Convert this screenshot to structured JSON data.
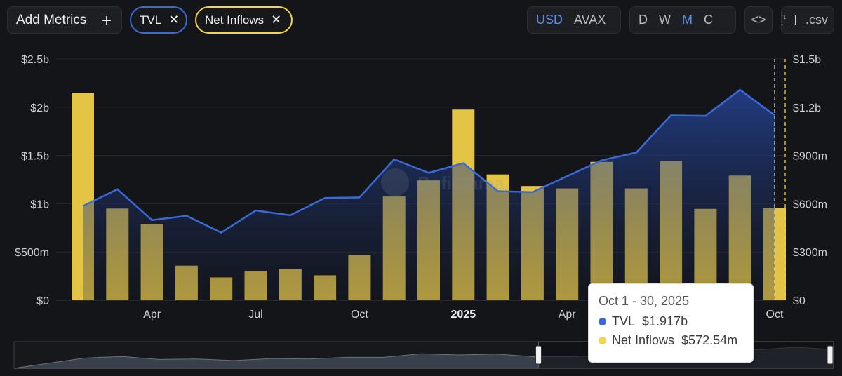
{
  "toolbar": {
    "add_metrics_label": "Add Metrics",
    "add_icon": "plus-icon",
    "metric_pills": [
      {
        "label": "TVL",
        "color": "#3a6ad8"
      },
      {
        "label": "Net Inflows",
        "color": "#f5d44a"
      }
    ],
    "close_icon": "x-icon",
    "currency_options": [
      "USD",
      "AVAX"
    ],
    "currency_selected": "USD",
    "period_options": [
      "D",
      "W",
      "M",
      "C"
    ],
    "period_selected": "M",
    "embed_label": "<>",
    "csv_label": ".csv",
    "accent_color": "#5a8ee8"
  },
  "watermark": "DefiLlama",
  "chart_data": {
    "type": "bar+area",
    "x": [
      "2024-02",
      "2024-03",
      "2024-04",
      "2024-05",
      "2024-06",
      "2024-07",
      "2024-08",
      "2024-09",
      "2024-10",
      "2024-11",
      "2024-12",
      "2025-01",
      "2025-02",
      "2025-03",
      "2025-04",
      "2025-05",
      "2025-06",
      "2025-07",
      "2025-08",
      "2025-09",
      "2025-10"
    ],
    "x_tick_labels": [
      {
        "x": "2024-04",
        "label": "Apr",
        "bold": false
      },
      {
        "x": "2024-07",
        "label": "Jul",
        "bold": false
      },
      {
        "x": "2024-10",
        "label": "Oct",
        "bold": false
      },
      {
        "x": "2025-01",
        "label": "2025",
        "bold": true
      },
      {
        "x": "2025-04",
        "label": "Apr",
        "bold": false
      },
      {
        "x": "2025-10",
        "label": "Oct",
        "bold": false
      }
    ],
    "series": [
      {
        "name": "TVL",
        "axis": "left",
        "type": "area",
        "color": "#3a6ad8",
        "unit": "USD",
        "values": [
          975000000,
          1150000000,
          830000000,
          875000000,
          700000000,
          930000000,
          880000000,
          1060000000,
          1065000000,
          1460000000,
          1320000000,
          1420000000,
          1130000000,
          1120000000,
          1285000000,
          1450000000,
          1530000000,
          1915000000,
          1910000000,
          2180000000,
          1917000000
        ]
      },
      {
        "name": "Net Inflows",
        "axis": "right",
        "type": "bar",
        "color": "#f5d44a",
        "unit": "USD",
        "values": [
          1290000000,
          570000000,
          475000000,
          215000000,
          142000000,
          183000000,
          193000000,
          155000000,
          282000000,
          645000000,
          745000000,
          1185000000,
          782000000,
          710000000,
          695000000,
          860000000,
          695000000,
          865000000,
          568000000,
          775000000,
          572540000
        ]
      }
    ],
    "y_left": {
      "ticks": [
        "$0",
        "$500m",
        "$1b",
        "$1.5b",
        "$2b",
        "$2.5b"
      ],
      "min": 0,
      "max": 2500000000
    },
    "y_right": {
      "ticks": [
        "$0",
        "$300m",
        "$600m",
        "$900m",
        "$1.2b",
        "$1.5b"
      ],
      "min": 0,
      "max": 1500000000
    },
    "grid": true,
    "legend": "none",
    "hover_index": 20
  },
  "tooltip": {
    "title": "Oct 1 - 30, 2025",
    "rows": [
      {
        "label": "TVL",
        "value": "$1.917b",
        "color": "#3a6ad8"
      },
      {
        "label": "Net Inflows",
        "value": "$572.54m",
        "color": "#f5d44a"
      }
    ]
  },
  "range_slider": {
    "selected_start": 0.64,
    "selected_end": 1.0
  }
}
